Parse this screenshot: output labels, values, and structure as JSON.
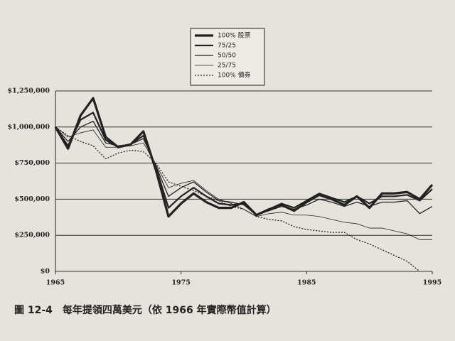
{
  "chart_data": {
    "type": "line",
    "caption": "圖 12-4　每年提領四萬美元（依 1966 年實際幣值計算）",
    "x": [
      1965,
      1966,
      1967,
      1968,
      1969,
      1970,
      1971,
      1972,
      1973,
      1974,
      1975,
      1976,
      1977,
      1978,
      1979,
      1980,
      1981,
      1982,
      1983,
      1984,
      1985,
      1986,
      1987,
      1988,
      1989,
      1990,
      1991,
      1992,
      1993,
      1994,
      1995
    ],
    "xlim": [
      1965,
      1995
    ],
    "xticks": [
      1965,
      1975,
      1985,
      1995
    ],
    "ylim": [
      0,
      1250000
    ],
    "yticks": [
      {
        "value": 0,
        "label": "$0"
      },
      {
        "value": 250000,
        "label": "$250,000"
      },
      {
        "value": 500000,
        "label": "$500,000"
      },
      {
        "value": 750000,
        "label": "$750,000"
      },
      {
        "value": 1000000,
        "label": "$1,000,000"
      },
      {
        "value": 1250000,
        "label": "$1,250,000"
      }
    ],
    "grid": true,
    "series": [
      {
        "name": "100% 股票",
        "color": "#222222",
        "line_width": 3.2,
        "dashed": false,
        "values": [
          1000000,
          850000,
          1080000,
          1200000,
          930000,
          860000,
          880000,
          970000,
          700000,
          380000,
          470000,
          540000,
          480000,
          440000,
          440000,
          480000,
          390000,
          430000,
          460000,
          420000,
          480000,
          530000,
          500000,
          460000,
          520000,
          440000,
          540000,
          540000,
          550000,
          500000,
          600000
        ]
      },
      {
        "name": "75/25",
        "color": "#222222",
        "line_width": 2.2,
        "dashed": false,
        "values": [
          1000000,
          870000,
          1050000,
          1100000,
          910000,
          860000,
          880000,
          940000,
          720000,
          440000,
          520000,
          580000,
          520000,
          470000,
          460000,
          470000,
          390000,
          430000,
          470000,
          440000,
          490000,
          540000,
          510000,
          480000,
          520000,
          470000,
          520000,
          520000,
          530000,
          490000,
          570000
        ]
      },
      {
        "name": "50/50",
        "color": "#222222",
        "line_width": 1.3,
        "dashed": false,
        "values": [
          1000000,
          900000,
          1000000,
          1040000,
          890000,
          870000,
          880000,
          920000,
          730000,
          520000,
          580000,
          620000,
          550000,
          490000,
          480000,
          460000,
          390000,
          420000,
          450000,
          430000,
          460000,
          500000,
          480000,
          450000,
          480000,
          450000,
          480000,
          480000,
          490000,
          400000,
          450000
        ]
      },
      {
        "name": "25/75",
        "color": "#222222",
        "line_width": 0.8,
        "dashed": false,
        "values": [
          1000000,
          930000,
          960000,
          980000,
          860000,
          860000,
          870000,
          890000,
          740000,
          580000,
          610000,
          630000,
          560000,
          500000,
          470000,
          430000,
          380000,
          400000,
          410000,
          390000,
          390000,
          380000,
          360000,
          340000,
          330000,
          300000,
          300000,
          280000,
          260000,
          220000,
          220000
        ]
      },
      {
        "name": "100% 債券",
        "color": "#222222",
        "line_width": 1.3,
        "dashed": true,
        "values": [
          1000000,
          940000,
          900000,
          870000,
          780000,
          820000,
          840000,
          830000,
          750000,
          620000,
          590000,
          560000,
          520000,
          490000,
          450000,
          430000,
          380000,
          360000,
          350000,
          310000,
          290000,
          280000,
          270000,
          270000,
          220000,
          190000,
          150000,
          110000,
          70000,
          0,
          null
        ]
      }
    ]
  }
}
